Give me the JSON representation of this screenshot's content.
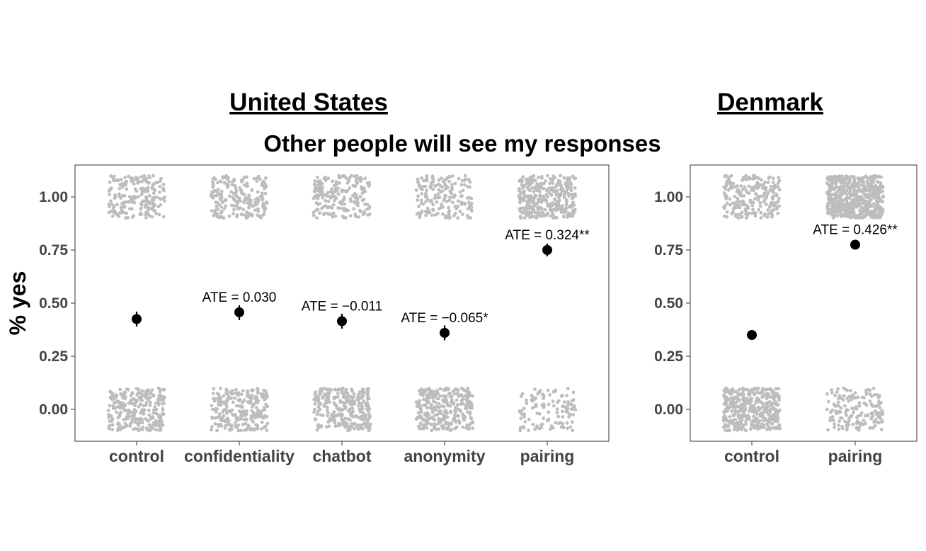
{
  "title": "Other people will see my responses",
  "ylabel": "% yes",
  "chart_data": [
    {
      "type": "scatter",
      "panel_title": "United States",
      "categories": [
        "control",
        "confidentiality",
        "chatbot",
        "anonymity",
        "pairing"
      ],
      "ylim": [
        -0.15,
        1.15
      ],
      "yticks": [
        "0.00",
        "0.25",
        "0.50",
        "0.75",
        "1.00"
      ],
      "grid": false,
      "points": [
        {
          "category": "control",
          "mean": 0.425,
          "lower": 0.39,
          "upper": 0.46,
          "annotation": "",
          "n_yes": 200,
          "n_no": 270
        },
        {
          "category": "confidentiality",
          "mean": 0.457,
          "lower": 0.42,
          "upper": 0.49,
          "annotation": "ATE = 0.030",
          "n_yes": 210,
          "n_no": 250
        },
        {
          "category": "chatbot",
          "mean": 0.415,
          "lower": 0.38,
          "upper": 0.45,
          "annotation": "ATE = −0.011",
          "n_yes": 195,
          "n_no": 275
        },
        {
          "category": "anonymity",
          "mean": 0.36,
          "lower": 0.325,
          "upper": 0.395,
          "annotation": "ATE = −0.065*",
          "n_yes": 170,
          "n_no": 300
        },
        {
          "category": "pairing",
          "mean": 0.75,
          "lower": 0.72,
          "upper": 0.78,
          "annotation": "ATE = 0.324**",
          "n_yes": 350,
          "n_no": 115
        }
      ]
    },
    {
      "type": "scatter",
      "panel_title": "Denmark",
      "categories": [
        "control",
        "pairing"
      ],
      "ylim": [
        -0.15,
        1.15
      ],
      "yticks": [
        "0.00",
        "0.25",
        "0.50",
        "0.75",
        "1.00"
      ],
      "grid": false,
      "points": [
        {
          "category": "control",
          "mean": 0.35,
          "lower": 0.33,
          "upper": 0.37,
          "annotation": "",
          "n_yes": 220,
          "n_no": 410
        },
        {
          "category": "pairing",
          "mean": 0.775,
          "lower": 0.76,
          "upper": 0.79,
          "annotation": "ATE = 0.426**",
          "n_yes": 560,
          "n_no": 160
        }
      ]
    }
  ]
}
